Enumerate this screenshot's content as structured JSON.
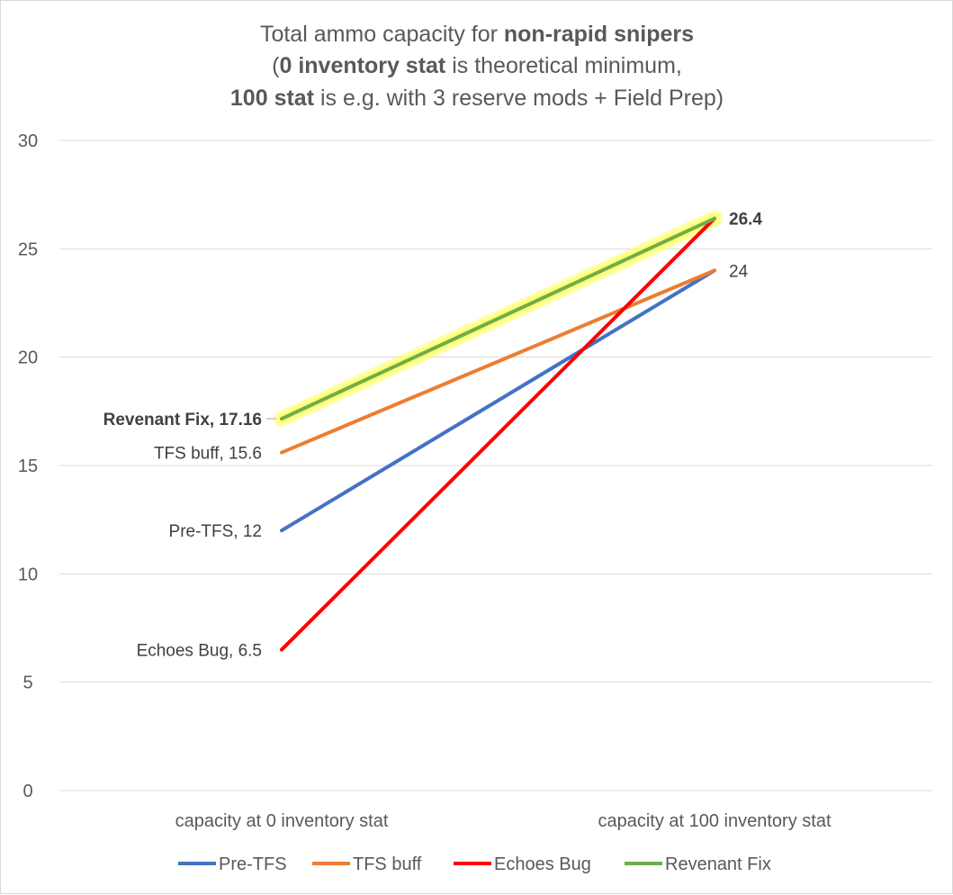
{
  "chart_data": {
    "type": "line",
    "title": {
      "line1": [
        "Total ammo capacity for ",
        "non-rapid snipers"
      ],
      "line2": [
        "(",
        "0 inventory stat",
        " is theoretical minimum,"
      ],
      "line3": [
        "100 stat",
        " is e.g. with 3 reserve mods + Field Prep)"
      ]
    },
    "categories": [
      "capacity at 0 inventory stat",
      "capacity at 100 inventory stat"
    ],
    "ylim": [
      0,
      30
    ],
    "yticks": [
      0,
      5,
      10,
      15,
      20,
      25,
      30
    ],
    "grid": true,
    "legend_position": "bottom",
    "series": [
      {
        "name": "Pre-TFS",
        "values": [
          12,
          24
        ],
        "color": "#4472c4",
        "labels": [
          "Pre-TFS, 12",
          "24"
        ],
        "bold": false,
        "highlight": false
      },
      {
        "name": "TFS buff",
        "values": [
          15.6,
          24
        ],
        "color": "#ed7d31",
        "labels": [
          "TFS buff, 15.6",
          ""
        ],
        "bold": false,
        "highlight": false
      },
      {
        "name": "Echoes Bug",
        "values": [
          6.5,
          26.4
        ],
        "color": "#ff0000",
        "labels": [
          "Echoes Bug, 6.5",
          ""
        ],
        "bold": false,
        "highlight": false
      },
      {
        "name": "Revenant Fix",
        "values": [
          17.16,
          26.4
        ],
        "color": "#70ad47",
        "labels": [
          "Revenant Fix, 17.16",
          "26.4"
        ],
        "bold": true,
        "highlight": true
      }
    ],
    "highlight_color": "#ffff66"
  }
}
